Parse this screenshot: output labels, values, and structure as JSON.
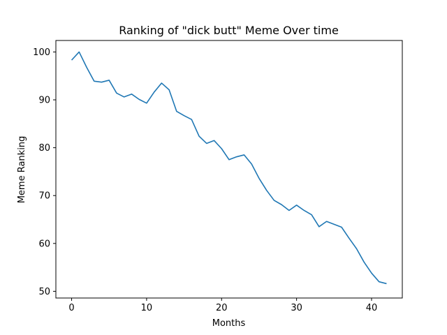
{
  "chart_data": {
    "type": "line",
    "title": "Ranking of \"dick butt\" Meme Over time",
    "xlabel": "Months",
    "ylabel": "Meme Ranking",
    "xlim": [
      -2.1,
      44.1
    ],
    "ylim": [
      48.6,
      102.4
    ],
    "xticks": [
      0,
      10,
      20,
      30,
      40
    ],
    "yticks": [
      50,
      60,
      70,
      80,
      90,
      100
    ],
    "grid": false,
    "legend": "none",
    "series": [
      {
        "color": "#1f77b4",
        "x": [
          0,
          1,
          2,
          3,
          4,
          5,
          6,
          7,
          8,
          9,
          10,
          11,
          12,
          13,
          14,
          15,
          16,
          17,
          18,
          19,
          20,
          21,
          22,
          23,
          24,
          25,
          26,
          27,
          28,
          29,
          30,
          31,
          32,
          33,
          34,
          35,
          36,
          37,
          38,
          39,
          40,
          41,
          42
        ],
        "values": [
          98.3,
          100.0,
          96.8,
          93.9,
          93.7,
          94.1,
          91.4,
          90.6,
          91.2,
          90.1,
          89.3,
          91.6,
          93.5,
          92.1,
          87.6,
          86.7,
          85.9,
          82.4,
          80.9,
          81.5,
          79.8,
          77.5,
          78.1,
          78.5,
          76.6,
          73.6,
          71.1,
          69.0,
          68.1,
          66.9,
          68.0,
          66.9,
          66.0,
          63.5,
          64.6,
          64.0,
          63.4,
          61.1,
          58.9,
          56.1,
          53.8,
          52.0,
          51.6
        ]
      }
    ]
  }
}
